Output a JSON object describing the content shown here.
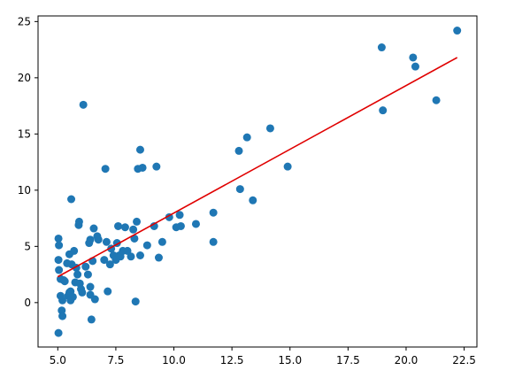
{
  "chart_data": {
    "type": "scatter",
    "title": "",
    "xlabel": "",
    "ylabel": "",
    "xlim": [
      4.15,
      23.05
    ],
    "ylim": [
      -3.95,
      25.5
    ],
    "grid": false,
    "xticks": [
      {
        "value": 5,
        "label": "5.0"
      },
      {
        "value": 7.5,
        "label": "7.5"
      },
      {
        "value": 10,
        "label": "10.0"
      },
      {
        "value": 12.5,
        "label": "12.5"
      },
      {
        "value": 15,
        "label": "15.0"
      },
      {
        "value": 17.5,
        "label": "17.5"
      },
      {
        "value": 20,
        "label": "20.0"
      },
      {
        "value": 22.5,
        "label": "22.5"
      }
    ],
    "yticks": [
      {
        "value": 0,
        "label": "0"
      },
      {
        "value": 5,
        "label": "5"
      },
      {
        "value": 10,
        "label": "10"
      },
      {
        "value": 15,
        "label": "15"
      },
      {
        "value": 20,
        "label": "20"
      },
      {
        "value": 25,
        "label": "25"
      }
    ],
    "colors": {
      "points": "#1f77b4",
      "fit_line": "#e00000",
      "axes": "#000000"
    },
    "series": [
      {
        "kind": "points",
        "points": [
          [
            5.03,
            -2.7
          ],
          [
            5.03,
            5.7
          ],
          [
            5.05,
            5.1
          ],
          [
            5.03,
            3.8
          ],
          [
            5.05,
            2.9
          ],
          [
            5.12,
            2.1
          ],
          [
            5.12,
            0.6
          ],
          [
            5.17,
            -0.7
          ],
          [
            5.2,
            -1.2
          ],
          [
            5.2,
            0.2
          ],
          [
            5.25,
            2.0
          ],
          [
            5.3,
            1.9
          ],
          [
            5.4,
            3.5
          ],
          [
            5.45,
            0.6
          ],
          [
            5.5,
            0.9
          ],
          [
            5.5,
            4.3
          ],
          [
            5.55,
            0.2
          ],
          [
            5.55,
            1.0
          ],
          [
            5.58,
            9.2
          ],
          [
            5.6,
            3.4
          ],
          [
            5.65,
            0.5
          ],
          [
            5.7,
            4.6
          ],
          [
            5.75,
            1.8
          ],
          [
            5.8,
            3.1
          ],
          [
            5.85,
            2.5
          ],
          [
            5.9,
            6.9
          ],
          [
            5.92,
            7.2
          ],
          [
            5.95,
            1.7
          ],
          [
            6.0,
            1.2
          ],
          [
            6.05,
            0.9
          ],
          [
            6.1,
            17.6
          ],
          [
            6.2,
            3.2
          ],
          [
            6.3,
            2.5
          ],
          [
            6.35,
            5.3
          ],
          [
            6.4,
            5.6
          ],
          [
            6.4,
            1.4
          ],
          [
            6.4,
            0.7
          ],
          [
            6.45,
            -1.5
          ],
          [
            6.5,
            3.7
          ],
          [
            6.55,
            6.6
          ],
          [
            6.6,
            0.3
          ],
          [
            6.7,
            5.9
          ],
          [
            6.75,
            5.6
          ],
          [
            7.0,
            3.8
          ],
          [
            7.05,
            11.9
          ],
          [
            7.1,
            5.4
          ],
          [
            7.15,
            1.0
          ],
          [
            7.25,
            3.4
          ],
          [
            7.3,
            4.8
          ],
          [
            7.4,
            4.2
          ],
          [
            7.5,
            3.8
          ],
          [
            7.55,
            5.3
          ],
          [
            7.6,
            6.8
          ],
          [
            7.65,
            4.2
          ],
          [
            7.7,
            4.1
          ],
          [
            7.8,
            4.6
          ],
          [
            7.9,
            6.7
          ],
          [
            8.0,
            4.6
          ],
          [
            8.15,
            4.1
          ],
          [
            8.25,
            6.5
          ],
          [
            8.3,
            5.7
          ],
          [
            8.35,
            0.1
          ],
          [
            8.4,
            7.2
          ],
          [
            8.45,
            11.9
          ],
          [
            8.55,
            13.6
          ],
          [
            8.55,
            4.2
          ],
          [
            8.65,
            12.0
          ],
          [
            8.85,
            5.1
          ],
          [
            9.15,
            6.8
          ],
          [
            9.25,
            12.1
          ],
          [
            9.35,
            4.0
          ],
          [
            9.5,
            5.4
          ],
          [
            9.8,
            7.6
          ],
          [
            10.1,
            6.7
          ],
          [
            10.25,
            7.8
          ],
          [
            10.3,
            6.8
          ],
          [
            10.95,
            7.0
          ],
          [
            11.7,
            8.0
          ],
          [
            11.7,
            5.4
          ],
          [
            12.8,
            13.5
          ],
          [
            12.85,
            10.1
          ],
          [
            13.15,
            14.7
          ],
          [
            13.4,
            9.1
          ],
          [
            14.15,
            15.5
          ],
          [
            14.9,
            12.1
          ],
          [
            18.95,
            22.7
          ],
          [
            19.0,
            17.1
          ],
          [
            20.3,
            21.8
          ],
          [
            20.4,
            21.0
          ],
          [
            21.3,
            18.0
          ],
          [
            22.2,
            24.2
          ]
        ]
      },
      {
        "kind": "fit_line",
        "x": [
          5.0,
          22.2
        ],
        "y": [
          2.3,
          21.8
        ]
      }
    ]
  }
}
